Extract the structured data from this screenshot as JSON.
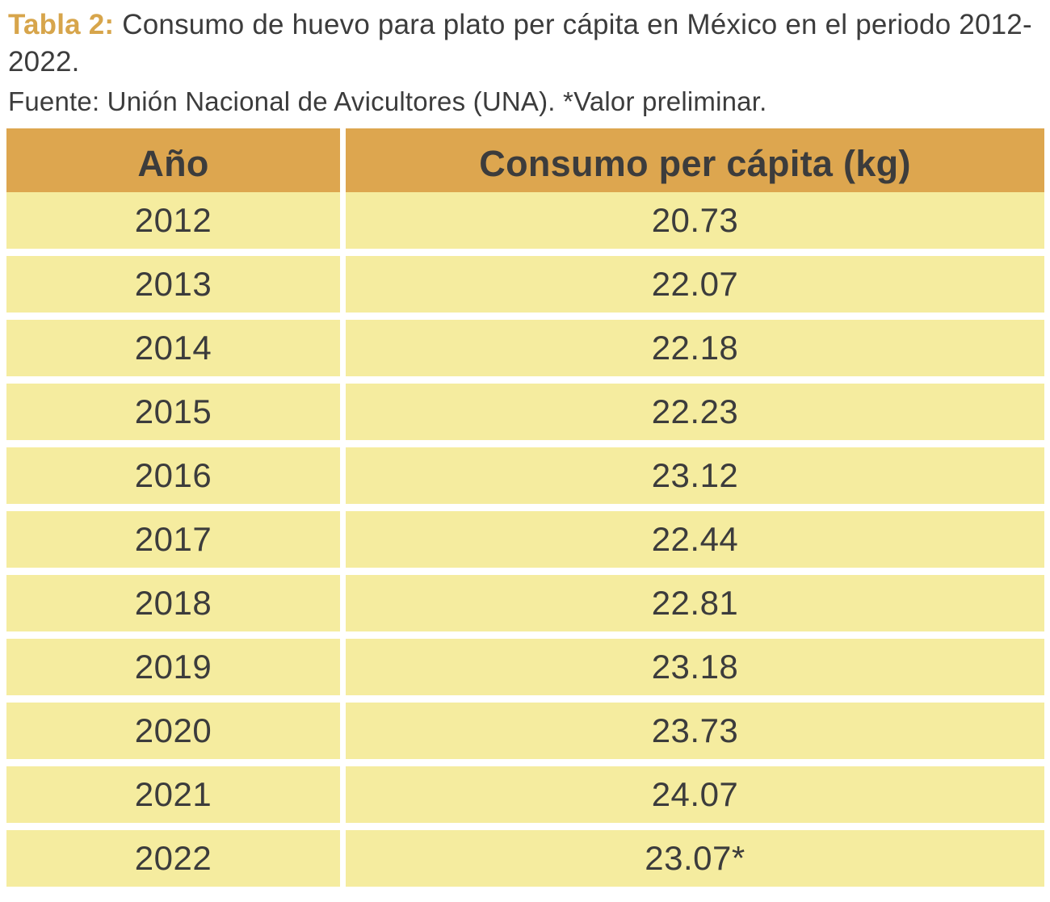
{
  "caption": {
    "label": "Tabla 2:",
    "text": "Consumo de huevo para plato per cápita en México en el periodo 2012-2022.",
    "source": "Fuente: Unión Nacional de Avicultores (UNA). *Valor preliminar."
  },
  "colors": {
    "header_bg": "#DDA64F",
    "row_bg": "#F5EC9F",
    "accent": "#D7A54B",
    "text_dark": "#3C3C3C",
    "page_bg": "#FFFFFF"
  },
  "chart_data": {
    "type": "table",
    "title": "Consumo de huevo para plato per cápita en México 2012-2022",
    "columns": [
      "Año",
      "Consumo per cápita (kg)"
    ],
    "rows": [
      [
        "2012",
        "20.73"
      ],
      [
        "2013",
        "22.07"
      ],
      [
        "2014",
        "22.18"
      ],
      [
        "2015",
        "22.23"
      ],
      [
        "2016",
        "23.12"
      ],
      [
        "2017",
        "22.44"
      ],
      [
        "2018",
        "22.81"
      ],
      [
        "2019",
        "23.18"
      ],
      [
        "2020",
        "23.73"
      ],
      [
        "2021",
        "24.07"
      ],
      [
        "2022",
        "23.07*"
      ]
    ],
    "footnote_marker": "*",
    "footnote_meaning": "Valor preliminar"
  }
}
